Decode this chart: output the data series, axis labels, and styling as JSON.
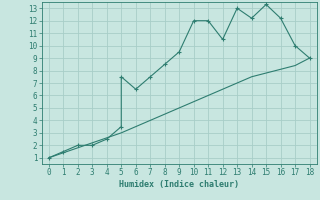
{
  "title": "",
  "xlabel": "Humidex (Indice chaleur)",
  "background_color": "#c8e6e0",
  "line_color": "#2e7d70",
  "grid_color": "#a8cec8",
  "xlim": [
    -0.5,
    18.5
  ],
  "ylim": [
    0.5,
    13.5
  ],
  "xticks": [
    0,
    1,
    2,
    3,
    4,
    5,
    6,
    7,
    8,
    9,
    10,
    11,
    12,
    13,
    14,
    15,
    16,
    17,
    18
  ],
  "yticks": [
    1,
    2,
    3,
    4,
    5,
    6,
    7,
    8,
    9,
    10,
    11,
    12,
    13
  ],
  "curve1_x": [
    0,
    1,
    2,
    3,
    4,
    5,
    5,
    6,
    7,
    8,
    9,
    10,
    11,
    12,
    13,
    14,
    15,
    16,
    17,
    18
  ],
  "curve1_y": [
    1,
    1.5,
    2,
    2,
    2.5,
    3.5,
    7.5,
    6.5,
    7.5,
    8.5,
    9.5,
    12,
    12,
    10.5,
    13,
    12.2,
    13.3,
    12.2,
    10,
    9
  ],
  "curve2_x": [
    0,
    1,
    2,
    3,
    4,
    5,
    6,
    7,
    8,
    9,
    10,
    11,
    12,
    13,
    14,
    15,
    16,
    17,
    18
  ],
  "curve2_y": [
    1,
    1.4,
    1.8,
    2.2,
    2.6,
    3.0,
    3.5,
    4.0,
    4.5,
    5.0,
    5.5,
    6.0,
    6.5,
    7.0,
    7.5,
    7.8,
    8.1,
    8.4,
    9.0
  ]
}
